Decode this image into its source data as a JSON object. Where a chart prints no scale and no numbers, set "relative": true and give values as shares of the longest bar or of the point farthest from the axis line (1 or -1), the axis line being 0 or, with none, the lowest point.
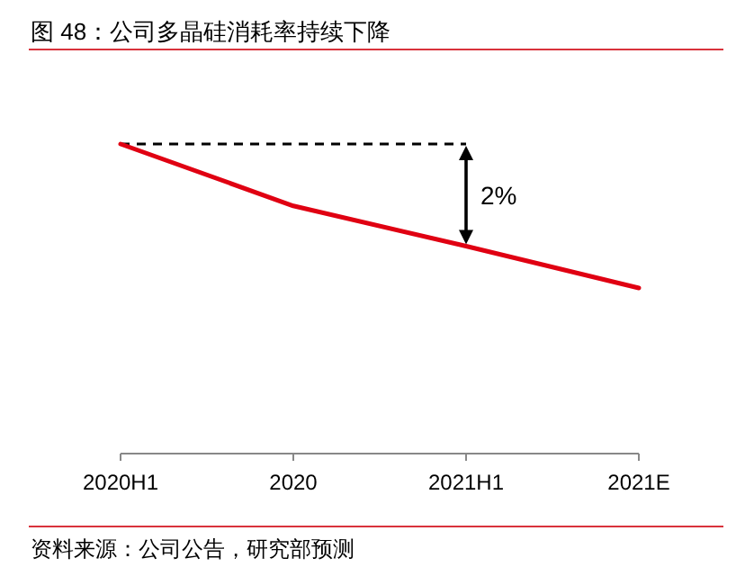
{
  "chart_data": {
    "type": "line",
    "title": "图 48：公司多晶硅消耗率持续下降",
    "categories": [
      "2020H1",
      "2020",
      "2021H1",
      "2021E"
    ],
    "series": [
      {
        "color": "#e00012",
        "values": [
          1,
          0.8,
          0.67,
          0.535
        ]
      }
    ],
    "relative": true,
    "grid": false,
    "annotations": [
      "2%",
      "资料来源：公司公告，研究部预测"
    ]
  }
}
